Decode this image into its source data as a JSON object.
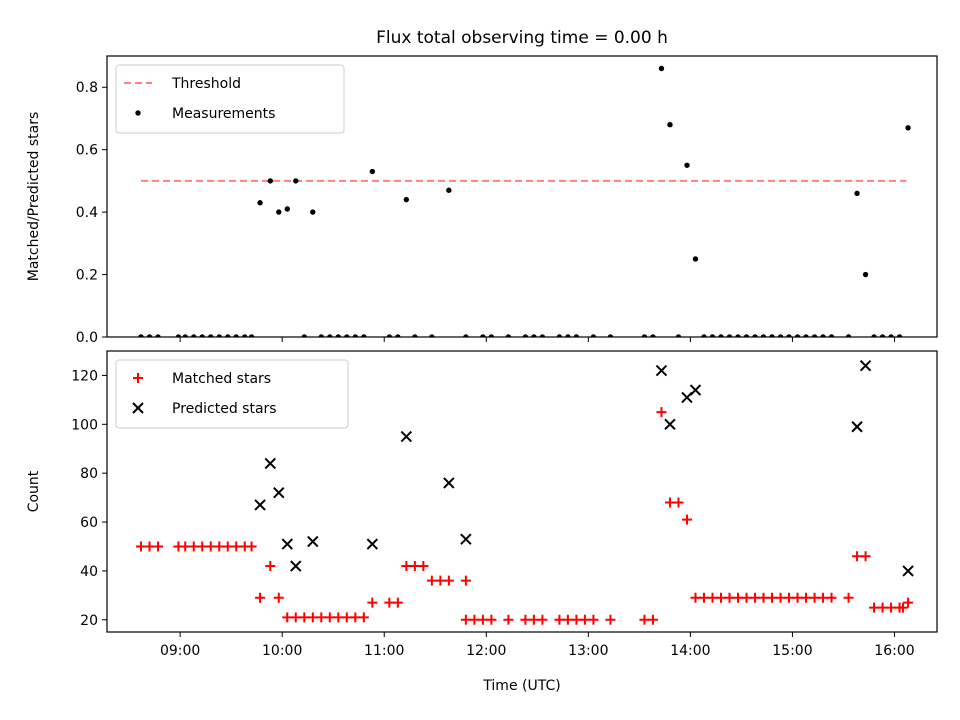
{
  "title": "Flux total observing time = 0.00 h",
  "x_label": "Time (UTC)",
  "x_ticks": [
    "09:00",
    "10:00",
    "11:00",
    "12:00",
    "13:00",
    "14:00",
    "15:00",
    "16:00"
  ],
  "chart_data": [
    {
      "type": "scatter",
      "ylabel": "Matched/Predicted stars",
      "xlim": [
        "08:17",
        "16:25"
      ],
      "ylim": [
        0,
        0.9
      ],
      "yticks": [
        "0.0",
        "0.2",
        "0.4",
        "0.6",
        "0.8"
      ],
      "legend_position": "upper-left",
      "threshold": {
        "name": "Threshold",
        "value": 0.5,
        "x_range": [
          "08:37",
          "16:07"
        ],
        "color": "#ff8080",
        "style": "dashed"
      },
      "series": [
        {
          "name": "Measurements",
          "color": "#000000",
          "marker": "dot",
          "points": [
            [
              "08:37",
              0
            ],
            [
              "08:42",
              0
            ],
            [
              "08:47",
              0
            ],
            [
              "08:59",
              0
            ],
            [
              "09:03",
              0
            ],
            [
              "09:08",
              0
            ],
            [
              "09:13",
              0
            ],
            [
              "09:18",
              0
            ],
            [
              "09:23",
              0
            ],
            [
              "09:28",
              0
            ],
            [
              "09:33",
              0
            ],
            [
              "09:38",
              0
            ],
            [
              "09:42",
              0
            ],
            [
              "09:47",
              0.43
            ],
            [
              "09:53",
              0.5
            ],
            [
              "09:58",
              0.4
            ],
            [
              "10:03",
              0.41
            ],
            [
              "10:08",
              0.5
            ],
            [
              "10:13",
              0
            ],
            [
              "10:18",
              0.4
            ],
            [
              "10:23",
              0
            ],
            [
              "10:28",
              0
            ],
            [
              "10:33",
              0
            ],
            [
              "10:38",
              0
            ],
            [
              "10:43",
              0
            ],
            [
              "10:48",
              0
            ],
            [
              "10:53",
              0.53
            ],
            [
              "11:03",
              0
            ],
            [
              "11:08",
              0
            ],
            [
              "11:13",
              0.44
            ],
            [
              "11:18",
              0
            ],
            [
              "11:28",
              0
            ],
            [
              "11:38",
              0.47
            ],
            [
              "11:48",
              0
            ],
            [
              "11:58",
              0
            ],
            [
              "12:03",
              0
            ],
            [
              "12:13",
              0
            ],
            [
              "12:23",
              0
            ],
            [
              "12:28",
              0
            ],
            [
              "12:33",
              0
            ],
            [
              "12:43",
              0
            ],
            [
              "12:48",
              0
            ],
            [
              "12:53",
              0
            ],
            [
              "13:03",
              0
            ],
            [
              "13:13",
              0
            ],
            [
              "13:33",
              0
            ],
            [
              "13:38",
              0
            ],
            [
              "13:43",
              0.86
            ],
            [
              "13:48",
              0.68
            ],
            [
              "13:53",
              0
            ],
            [
              "13:58",
              0.55
            ],
            [
              "14:03",
              0.25
            ],
            [
              "14:08",
              0
            ],
            [
              "14:13",
              0
            ],
            [
              "14:18",
              0
            ],
            [
              "14:23",
              0
            ],
            [
              "14:28",
              0
            ],
            [
              "14:33",
              0
            ],
            [
              "14:38",
              0
            ],
            [
              "14:43",
              0
            ],
            [
              "14:48",
              0
            ],
            [
              "14:53",
              0
            ],
            [
              "14:58",
              0
            ],
            [
              "15:03",
              0
            ],
            [
              "15:08",
              0
            ],
            [
              "15:13",
              0
            ],
            [
              "15:18",
              0
            ],
            [
              "15:23",
              0
            ],
            [
              "15:33",
              0
            ],
            [
              "15:38",
              0.46
            ],
            [
              "15:43",
              0.2
            ],
            [
              "15:48",
              0
            ],
            [
              "15:53",
              0
            ],
            [
              "15:58",
              0
            ],
            [
              "16:03",
              0
            ],
            [
              "16:08",
              0.67
            ]
          ]
        }
      ]
    },
    {
      "type": "scatter",
      "ylabel": "Count",
      "xlim": [
        "08:17",
        "16:25"
      ],
      "ylim": [
        15,
        130
      ],
      "yticks": [
        "20",
        "40",
        "60",
        "80",
        "100",
        "120"
      ],
      "legend_position": "upper-left",
      "series": [
        {
          "name": "Matched stars",
          "color": "#ff0000",
          "marker": "plus",
          "points": [
            [
              "08:37",
              50
            ],
            [
              "08:42",
              50
            ],
            [
              "08:47",
              50
            ],
            [
              "08:59",
              50
            ],
            [
              "09:03",
              50
            ],
            [
              "09:08",
              50
            ],
            [
              "09:13",
              50
            ],
            [
              "09:18",
              50
            ],
            [
              "09:23",
              50
            ],
            [
              "09:28",
              50
            ],
            [
              "09:33",
              50
            ],
            [
              "09:38",
              50
            ],
            [
              "09:42",
              50
            ],
            [
              "09:47",
              29
            ],
            [
              "09:53",
              42
            ],
            [
              "09:58",
              29
            ],
            [
              "10:03",
              21
            ],
            [
              "10:08",
              21
            ],
            [
              "10:13",
              21
            ],
            [
              "10:18",
              21
            ],
            [
              "10:23",
              21
            ],
            [
              "10:28",
              21
            ],
            [
              "10:33",
              21
            ],
            [
              "10:38",
              21
            ],
            [
              "10:43",
              21
            ],
            [
              "10:48",
              21
            ],
            [
              "10:53",
              27
            ],
            [
              "11:03",
              27
            ],
            [
              "11:08",
              27
            ],
            [
              "11:13",
              42
            ],
            [
              "11:18",
              42
            ],
            [
              "11:23",
              42
            ],
            [
              "11:28",
              36
            ],
            [
              "11:33",
              36
            ],
            [
              "11:38",
              36
            ],
            [
              "11:48",
              36
            ],
            [
              "11:48",
              20
            ],
            [
              "11:53",
              20
            ],
            [
              "11:58",
              20
            ],
            [
              "12:03",
              20
            ],
            [
              "12:13",
              20
            ],
            [
              "12:23",
              20
            ],
            [
              "12:28",
              20
            ],
            [
              "12:33",
              20
            ],
            [
              "12:43",
              20
            ],
            [
              "12:48",
              20
            ],
            [
              "12:53",
              20
            ],
            [
              "12:58",
              20
            ],
            [
              "13:03",
              20
            ],
            [
              "13:13",
              20
            ],
            [
              "13:33",
              20
            ],
            [
              "13:38",
              20
            ],
            [
              "13:43",
              105
            ],
            [
              "13:48",
              68
            ],
            [
              "13:53",
              68
            ],
            [
              "13:58",
              61
            ],
            [
              "14:03",
              29
            ],
            [
              "14:08",
              29
            ],
            [
              "14:13",
              29
            ],
            [
              "14:18",
              29
            ],
            [
              "14:23",
              29
            ],
            [
              "14:28",
              29
            ],
            [
              "14:33",
              29
            ],
            [
              "14:38",
              29
            ],
            [
              "14:43",
              29
            ],
            [
              "14:48",
              29
            ],
            [
              "14:53",
              29
            ],
            [
              "14:58",
              29
            ],
            [
              "15:03",
              29
            ],
            [
              "15:08",
              29
            ],
            [
              "15:13",
              29
            ],
            [
              "15:18",
              29
            ],
            [
              "15:23",
              29
            ],
            [
              "15:33",
              29
            ],
            [
              "15:38",
              46
            ],
            [
              "15:43",
              46
            ],
            [
              "15:48",
              25
            ],
            [
              "15:53",
              25
            ],
            [
              "15:58",
              25
            ],
            [
              "16:03",
              25
            ],
            [
              "16:05",
              25
            ],
            [
              "16:08",
              27
            ]
          ]
        },
        {
          "name": "Predicted stars",
          "color": "#000000",
          "marker": "x",
          "points": [
            [
              "09:47",
              67
            ],
            [
              "09:53",
              84
            ],
            [
              "09:58",
              72
            ],
            [
              "10:03",
              51
            ],
            [
              "10:08",
              42
            ],
            [
              "10:18",
              52
            ],
            [
              "10:53",
              51
            ],
            [
              "11:13",
              95
            ],
            [
              "11:38",
              76
            ],
            [
              "11:48",
              53
            ],
            [
              "13:43",
              122
            ],
            [
              "13:48",
              100
            ],
            [
              "13:58",
              111
            ],
            [
              "14:03",
              114
            ],
            [
              "15:38",
              99
            ],
            [
              "15:43",
              124
            ],
            [
              "16:08",
              40
            ]
          ]
        }
      ]
    }
  ]
}
